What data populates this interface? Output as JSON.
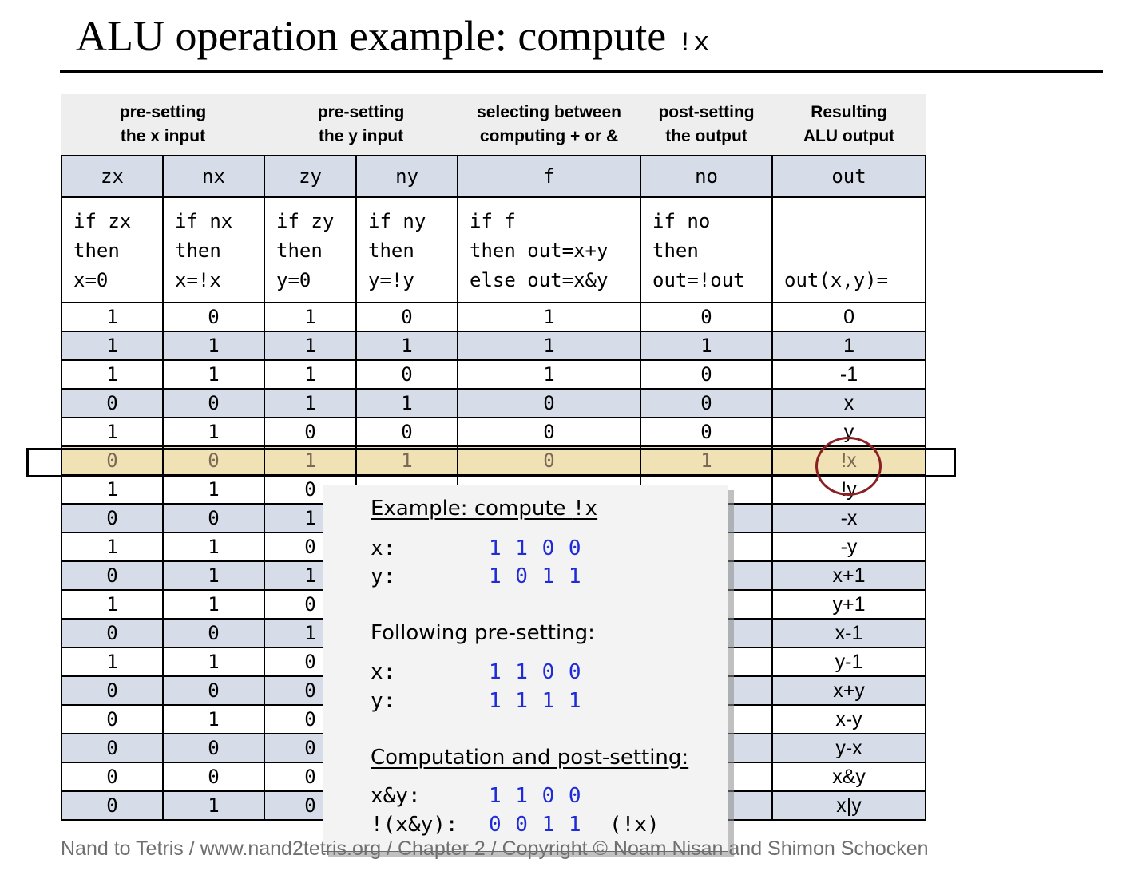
{
  "title": {
    "text": "ALU operation example: compute ",
    "code": "!x"
  },
  "groups": [
    {
      "line1": "pre-setting",
      "line2": "the x input"
    },
    {
      "line1": "pre-setting",
      "line2": "the y input"
    },
    {
      "line1": "selecting between",
      "line2": "computing + or &"
    },
    {
      "line1": "post-setting",
      "line2": "the output"
    },
    {
      "line1": "Resulting",
      "line2": "ALU output"
    }
  ],
  "headers": [
    "zx",
    "nx",
    "zy",
    "ny",
    "f",
    "no",
    "out"
  ],
  "descriptions": [
    "if zx\nthen\nx=0",
    "if nx\nthen\nx=!x",
    "if zy\nthen\ny=0",
    "if ny\nthen\ny=!y",
    "if f\nthen out=x+y\nelse out=x&y",
    "if no\nthen\nout=!out",
    "out(x,y)="
  ],
  "rows": [
    [
      "1",
      "0",
      "1",
      "0",
      "1",
      "0",
      "0"
    ],
    [
      "1",
      "1",
      "1",
      "1",
      "1",
      "1",
      "1"
    ],
    [
      "1",
      "1",
      "1",
      "0",
      "1",
      "0",
      "-1"
    ],
    [
      "0",
      "0",
      "1",
      "1",
      "0",
      "0",
      "x"
    ],
    [
      "1",
      "1",
      "0",
      "0",
      "0",
      "0",
      "y"
    ],
    [
      "0",
      "0",
      "1",
      "1",
      "0",
      "1",
      "!x"
    ],
    [
      "1",
      "1",
      "0",
      "",
      "",
      "",
      "!y"
    ],
    [
      "0",
      "0",
      "1",
      "",
      "",
      "",
      "-x"
    ],
    [
      "1",
      "1",
      "0",
      "",
      "",
      "",
      "-y"
    ],
    [
      "0",
      "1",
      "1",
      "",
      "",
      "",
      "x+1"
    ],
    [
      "1",
      "1",
      "0",
      "",
      "",
      "",
      "y+1"
    ],
    [
      "0",
      "0",
      "1",
      "",
      "",
      "",
      "x-1"
    ],
    [
      "1",
      "1",
      "0",
      "",
      "",
      "",
      "y-1"
    ],
    [
      "0",
      "0",
      "0",
      "",
      "",
      "",
      "x+y"
    ],
    [
      "0",
      "1",
      "0",
      "",
      "",
      "",
      "x-y"
    ],
    [
      "0",
      "0",
      "0",
      "",
      "",
      "",
      "y-x"
    ],
    [
      "0",
      "0",
      "0",
      "",
      "",
      "",
      "x&y"
    ],
    [
      "0",
      "1",
      "0",
      "",
      "",
      "",
      "x|y"
    ]
  ],
  "highlight_row": 5,
  "popup": {
    "heading1_text": "Example: compute ",
    "heading1_code": "!x",
    "x_label": "x:",
    "x_bits": "1 1 0 0",
    "y_label": "y:",
    "y_bits": "1 0 1 1",
    "heading2": "Following pre-setting:",
    "x2_label": "x:",
    "x2_bits": "1 1 0 0",
    "y2_label": "y:",
    "y2_bits": "1 1 1 1",
    "heading3": "Computation and post-setting:",
    "and_label": "x&y:",
    "and_bits": "1 1 0 0",
    "not_label": "!(x&y):",
    "not_bits": "0 0 1 1",
    "not_note": "(!x)"
  },
  "footer": "Nand to Tetris / www.nand2tetris.org / Chapter 2 / Copyright © Noam Nisan and Shimon Schocken",
  "colors": {
    "header_fill": "#d6dde9",
    "highlight_fill": "#f0e2b4",
    "circle": "#8b1f24",
    "bits": "#1f2bd6"
  }
}
